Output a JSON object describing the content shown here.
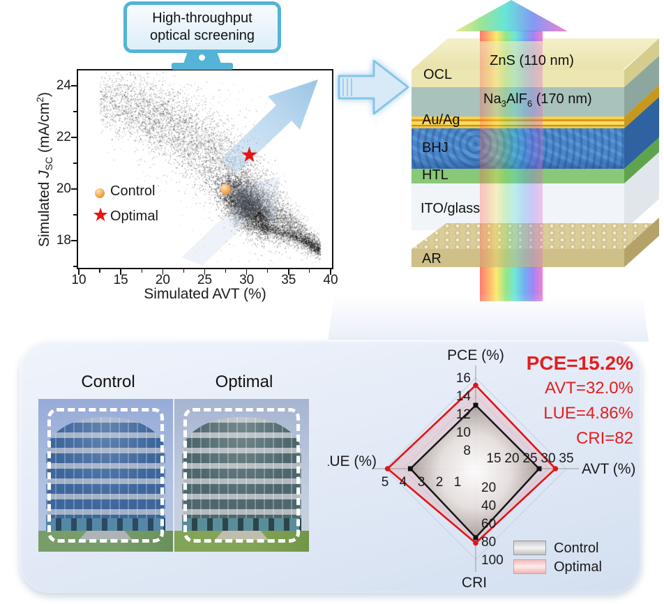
{
  "monitor": {
    "line1": "High-throughput",
    "line2": "optical screening"
  },
  "chart_data": [
    {
      "type": "scatter",
      "title": "",
      "xlabel": "Simulated AVT (%)",
      "ylabel_parts": [
        "Simulated ",
        "J",
        "SC",
        " (mA/cm",
        "2",
        ")"
      ],
      "xlim": [
        10,
        40
      ],
      "ylim": [
        16.9,
        24.65
      ],
      "xticks": [
        10,
        15,
        20,
        25,
        30,
        35,
        40
      ],
      "xticks_minor": [
        12.5,
        17.5,
        22.5,
        27.5,
        32.5,
        37.5
      ],
      "yticks": [
        18,
        20,
        22,
        24
      ],
      "yticks_minor": [
        17,
        19,
        21,
        23
      ],
      "grid": false,
      "legend_position": "middle-left",
      "legend": [
        {
          "label": "Control",
          "marker": "sphere",
          "color": "#f09a48"
        },
        {
          "label": "Optimal",
          "marker": "star",
          "color": "#e81410"
        }
      ],
      "control_point": {
        "x": 27.3,
        "y": 20.05,
        "color": "#f09a48"
      },
      "optimal_point": {
        "x": 30.3,
        "y": 21.35,
        "color": "#e81410"
      },
      "cloud": {
        "description": "dense Monte-Carlo simulation cloud of ~10000 black points, descending band from (13,24.3) to (38.5,17.7) with very dense blob near (30,19.4) and thin tail along lower-right edge",
        "band": {
          "count": 6200,
          "alpha": 0.45,
          "x_min": 12.3,
          "x_max": 38.6,
          "x_power": 0.8,
          "centerline": [
            [
              12.5,
              23.6
            ],
            [
              15,
              23.35
            ],
            [
              18,
              22.95
            ],
            [
              21,
              22.5
            ],
            [
              24,
              21.8
            ],
            [
              27,
              21.0
            ],
            [
              30,
              20.1
            ],
            [
              32,
              19.5
            ],
            [
              34,
              18.85
            ],
            [
              36,
              18.35
            ],
            [
              38.5,
              17.75
            ]
          ],
          "sigma": [
            [
              12.5,
              0.5
            ],
            [
              16,
              0.62
            ],
            [
              20,
              0.74
            ],
            [
              24,
              0.85
            ],
            [
              28,
              0.9
            ],
            [
              31,
              0.85
            ],
            [
              33,
              0.6
            ],
            [
              35,
              0.4
            ],
            [
              37,
              0.25
            ],
            [
              38.5,
              0.18
            ]
          ]
        },
        "halo": {
          "count": 750,
          "alpha": 0.22,
          "sigma_scale": 2.1
        },
        "blob": {
          "count": 5200,
          "center": [
            30.0,
            19.4
          ],
          "sigma_x": 1.55,
          "sigma_y": 0.42,
          "tilt": -0.18,
          "alpha": 0.55
        },
        "tail": {
          "count": 800,
          "alpha": 0.5,
          "sigma": 0.1,
          "centerline": [
            [
              31.5,
              18.62
            ],
            [
              33.5,
              18.42
            ],
            [
              35.5,
              18.22
            ],
            [
              37,
              18.0
            ],
            [
              38.2,
              17.72
            ]
          ]
        }
      }
    },
    {
      "type": "radar",
      "axes": [
        {
          "key": "PCE",
          "title": "PCE (%)",
          "dir": "up",
          "min": 6,
          "max": 16,
          "ticks": [
            8,
            10,
            12,
            14,
            16
          ]
        },
        {
          "key": "AVT",
          "title": "AVT (%)",
          "dir": "right",
          "min": 10,
          "max": 35,
          "ticks": [
            15,
            20,
            25,
            30,
            35
          ]
        },
        {
          "key": "CRI",
          "title": "CRI",
          "dir": "down",
          "min": 0,
          "max": 100,
          "ticks": [
            20,
            40,
            60,
            80,
            100
          ]
        },
        {
          "key": "LUE",
          "title": "LUE (%)",
          "dir": "left",
          "min": 0,
          "max": 5,
          "ticks": [
            1,
            2,
            3,
            4,
            5
          ]
        }
      ],
      "series": [
        {
          "name": "Control",
          "color": "#151515",
          "values": {
            "PCE": 13.0,
            "AVT": 27.5,
            "CRI": 76,
            "LUE": 3.6
          }
        },
        {
          "name": "Optimal",
          "color": "#e01616",
          "values": {
            "PCE": 15.2,
            "AVT": 32.0,
            "CRI": 82,
            "LUE": 4.86
          }
        }
      ],
      "grid_levels": [
        0.2,
        0.4,
        0.6,
        0.8,
        1.0
      ]
    }
  ],
  "device_stack": {
    "layers": [
      {
        "id": "zns",
        "label": "ZnS (110 nm)",
        "color": "#ece6b2",
        "side": "#d5cd8e"
      },
      {
        "id": "naalf",
        "label_parts": [
          "Na",
          "3",
          "AlF",
          "6",
          " (170 nm)"
        ],
        "color": "#a9c2bb",
        "side": "#8da79f"
      },
      {
        "id": "auag",
        "label": "Au/Ag",
        "color": "#f2c63c",
        "side": "#c6981e"
      },
      {
        "id": "bhj",
        "label": "BHJ",
        "color": "#4a86c8",
        "side": "#2e62a0"
      },
      {
        "id": "htl",
        "label": "HTL",
        "color": "#88c876",
        "side": "#5fa44c"
      },
      {
        "id": "ito",
        "label": "ITO/glass",
        "color": "rgba(233,238,243,0.62)",
        "side": "rgba(204,213,221,0.6)"
      },
      {
        "id": "ar",
        "label": "AR",
        "color": "#cfc08a",
        "side": "#b5a269"
      }
    ],
    "ocl_label": "OCL"
  },
  "panel": {
    "photos": [
      {
        "label": "Control",
        "window_color": "#39618f",
        "tint": "rgba(80,125,205,0.20)"
      },
      {
        "label": "Optimal",
        "window_color": "#47616a",
        "tint": "rgba(140,160,140,0.10)"
      }
    ],
    "metrics": {
      "color": "#e41e1e",
      "pce": "PCE=15.2%",
      "avt": "AVT=32.0%",
      "lue": "LUE=4.86%",
      "cri": "CRI=82"
    },
    "legend": [
      {
        "label": "Control"
      },
      {
        "label": "Optimal"
      }
    ]
  }
}
